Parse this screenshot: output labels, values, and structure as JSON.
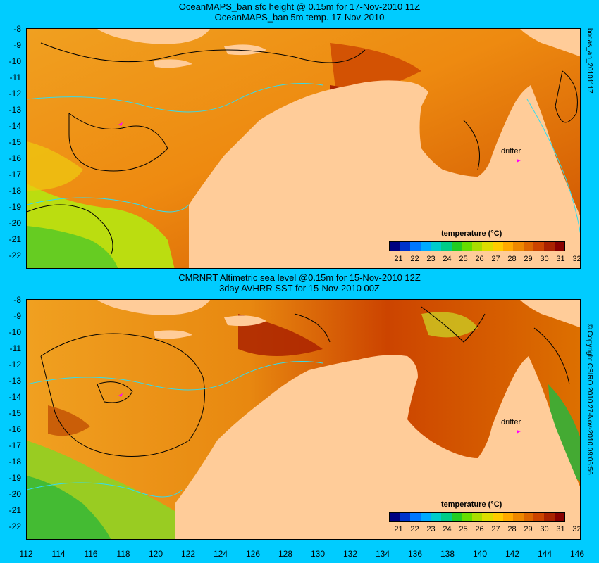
{
  "panel_top": {
    "title_line1": "OceanMAPS_ban sfc height @ 0.15m for 17-Nov-2010 11Z",
    "title_line2": "OceanMAPS_ban 5m temp. 17-Nov-2010",
    "side_label": "bodas_an_20101117",
    "legend_title": "temperature (°C)",
    "drifter_label": "drifter"
  },
  "panel_bottom": {
    "title_line1": "CMRNRT Altimetric sea level  @0.15m  for 15-Nov-2010 12Z",
    "title_line2": "3day AVHRR SST for 15-Nov-2010 00Z",
    "side_label": "© Copyright CSIRO 2010   27-Nov-2010 09:05:56",
    "legend_title": "temperature (°C)",
    "drifter_label": "drifter"
  },
  "y_ticks": [
    "-8",
    "-9",
    "-10",
    "-11",
    "-12",
    "-13",
    "-14",
    "-15",
    "-16",
    "-17",
    "-18",
    "-19",
    "-20",
    "-21",
    "-22"
  ],
  "x_ticks": [
    "112",
    "114",
    "116",
    "118",
    "120",
    "122",
    "124",
    "126",
    "128",
    "130",
    "132",
    "134",
    "136",
    "138",
    "140",
    "142",
    "144",
    "146"
  ],
  "colorbar": {
    "labels": [
      "21",
      "22",
      "23",
      "24",
      "25",
      "26",
      "27",
      "28",
      "29",
      "30",
      "31",
      "32"
    ],
    "colors": [
      "#000080",
      "#0033cc",
      "#0077ff",
      "#00aaff",
      "#00cccc",
      "#00cc88",
      "#22cc22",
      "#66dd00",
      "#aadd00",
      "#dddd00",
      "#ffcc00",
      "#ffaa00",
      "#ee8800",
      "#dd6600",
      "#cc4400",
      "#aa2200",
      "#880000"
    ]
  },
  "colors": {
    "background": "#00ccff",
    "land": "#ffcc99",
    "contour": "#000000",
    "drifter": "#ff00ff"
  }
}
